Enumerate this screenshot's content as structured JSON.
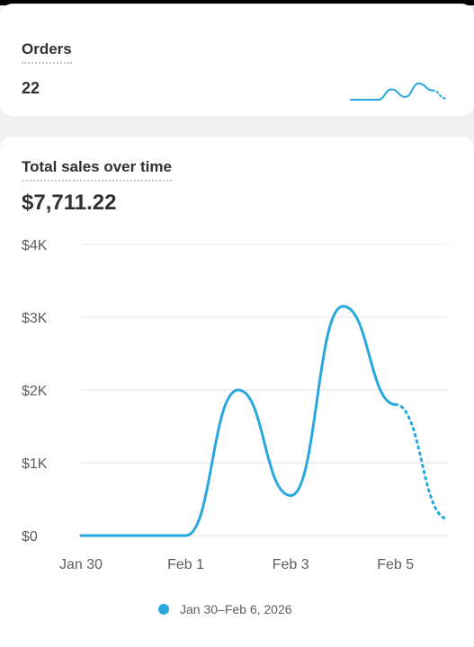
{
  "orders": {
    "label": "Orders",
    "value": "22",
    "sparkline_color": "#29a8e0"
  },
  "sales": {
    "label": "Total sales over time",
    "value": "$7,711.22"
  },
  "legend": {
    "label": "Jan 30–Feb 6, 2026",
    "color": "#29a8e0"
  },
  "chart_data": {
    "type": "line",
    "x": [
      "Jan 30",
      "Jan 31",
      "Feb 1",
      "Feb 2",
      "Feb 3",
      "Feb 4",
      "Feb 5",
      "Feb 6"
    ],
    "series": [
      {
        "values": [
          0,
          0,
          0,
          2000,
          550,
          3150,
          1800,
          230
        ],
        "color": "#29a8e0",
        "dotted_from_index": 6
      }
    ],
    "ylim": [
      0,
      4000
    ],
    "yticks": [
      0,
      1000,
      2000,
      3000,
      4000
    ],
    "ytick_labels": [
      "$0",
      "$1K",
      "$2K",
      "$3K",
      "$4K"
    ],
    "xtick_labels": [
      "Jan 30",
      "Feb 1",
      "Feb 3",
      "Feb 5"
    ],
    "grid": true
  }
}
